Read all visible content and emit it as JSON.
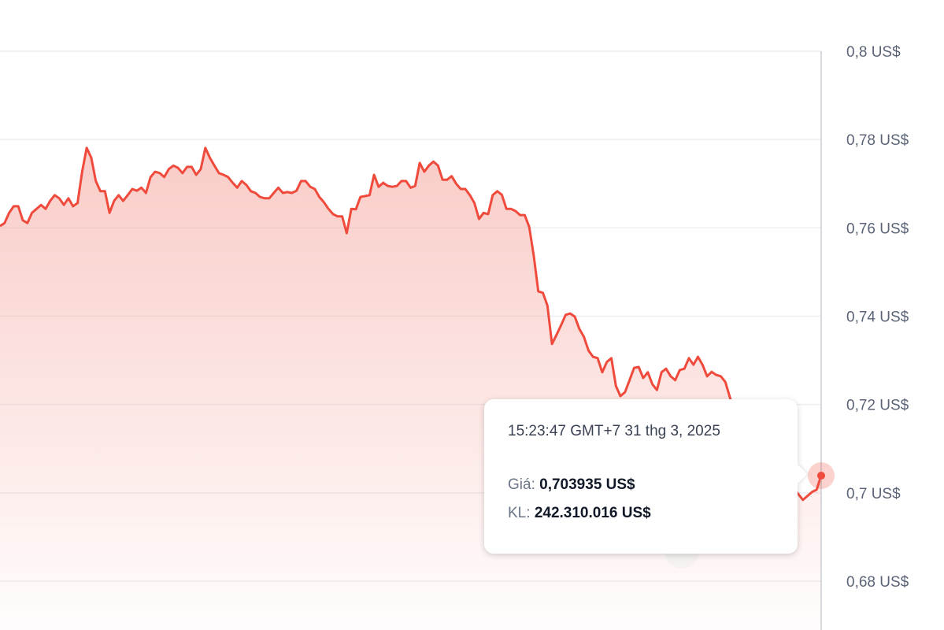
{
  "chart_data": {
    "type": "area",
    "title": "",
    "xlabel": "",
    "ylabel": "",
    "ylim": [
      0.68,
      0.8
    ],
    "yticks": [
      0.8,
      0.78,
      0.76,
      0.74,
      0.72,
      0.7,
      0.68
    ],
    "ytick_labels": [
      "0,8 US$",
      "0,78 US$",
      "0,76 US$",
      "0,74 US$",
      "0,72 US$",
      "0,7 US$",
      "0,68 US$"
    ],
    "grid": true,
    "line_color": "#ef4a3c",
    "fill_color": "#f4a29a",
    "values": [
      0.7604,
      0.7611,
      0.7634,
      0.7649,
      0.7649,
      0.7617,
      0.7611,
      0.7634,
      0.7643,
      0.7652,
      0.7643,
      0.7661,
      0.7674,
      0.7667,
      0.7652,
      0.7667,
      0.7649,
      0.7656,
      0.7727,
      0.7781,
      0.7759,
      0.7706,
      0.7683,
      0.7683,
      0.7634,
      0.7661,
      0.7674,
      0.7661,
      0.7674,
      0.7688,
      0.7684,
      0.7691,
      0.7679,
      0.7715,
      0.7727,
      0.7724,
      0.7715,
      0.7733,
      0.7741,
      0.7736,
      0.7724,
      0.7738,
      0.7738,
      0.772,
      0.7733,
      0.7781,
      0.7759,
      0.7741,
      0.7724,
      0.772,
      0.7715,
      0.7702,
      0.7691,
      0.7706,
      0.7697,
      0.7683,
      0.7679,
      0.767,
      0.7667,
      0.7667,
      0.7679,
      0.7691,
      0.7679,
      0.7681,
      0.7679,
      0.7684,
      0.7706,
      0.7706,
      0.7693,
      0.7688,
      0.767,
      0.7658,
      0.7643,
      0.7631,
      0.7626,
      0.7626,
      0.7588,
      0.7643,
      0.7642,
      0.767,
      0.7672,
      0.7674,
      0.772,
      0.7693,
      0.7702,
      0.7695,
      0.7693,
      0.7695,
      0.7706,
      0.7706,
      0.7691,
      0.7695,
      0.7747,
      0.7727,
      0.7741,
      0.775,
      0.7741,
      0.7709,
      0.7709,
      0.7717,
      0.77,
      0.7688,
      0.7688,
      0.7674,
      0.7656,
      0.762,
      0.7634,
      0.7631,
      0.7674,
      0.7683,
      0.7675,
      0.7643,
      0.7643,
      0.7638,
      0.7629,
      0.7629,
      0.7602,
      0.7536,
      0.7456,
      0.7453,
      0.7424,
      0.7337,
      0.7358,
      0.738,
      0.7403,
      0.7406,
      0.7399,
      0.7371,
      0.7353,
      0.7322,
      0.7308,
      0.7305,
      0.7273,
      0.7296,
      0.7305,
      0.7242,
      0.7219,
      0.7228,
      0.7255,
      0.7283,
      0.7285,
      0.726,
      0.7273,
      0.7246,
      0.7233,
      0.7273,
      0.7281,
      0.7264,
      0.7255,
      0.7278,
      0.7281,
      0.7305,
      0.729,
      0.7308,
      0.729,
      0.7264,
      0.7274,
      0.7267,
      0.7264,
      0.7251,
      0.7216,
      0.7185,
      0.7153,
      0.7135,
      0.7118,
      0.71,
      0.7082,
      0.7073,
      0.7064,
      0.7055,
      0.7046,
      0.7037,
      0.7028,
      0.7019,
      0.701,
      0.6997,
      0.6984,
      0.6993,
      0.7002,
      0.7007,
      0.7039
    ],
    "tooltip": {
      "time": "15:23:47 GMT+7 31 thg 3, 2025",
      "price_label": "Giá:",
      "price_value": "0,703935 US$",
      "volume_label": "KL:",
      "volume_value": "242.310.016 US$"
    }
  }
}
